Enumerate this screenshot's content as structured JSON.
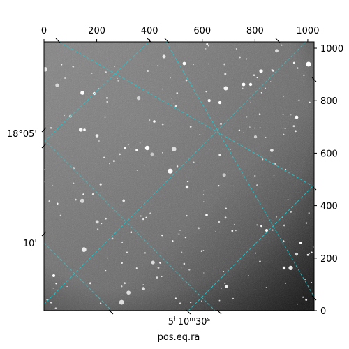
{
  "chart_data": {
    "type": "image",
    "xlabel": "pos.eq.ra",
    "ylabel": "",
    "pixel_axes": {
      "x_range": [
        0,
        1024
      ],
      "y_range": [
        0,
        1024
      ],
      "top_ticks": [
        "0",
        "200",
        "400",
        "600",
        "800",
        "1000"
      ],
      "right_ticks": [
        "0",
        "200",
        "400",
        "600",
        "800",
        "1000"
      ]
    },
    "world_ticks": {
      "ra_label": {
        "hours": "5",
        "minutes": "10",
        "seconds": "30",
        "h": "h",
        "m": "m",
        "s": "s"
      },
      "dec_labels": [
        "18°05'",
        "10'"
      ]
    },
    "grid": {
      "enabled": true,
      "color": "#20c8d0",
      "style": "dashed"
    },
    "image": {
      "colormap": "gray",
      "background": "#7a7a7a"
    }
  }
}
